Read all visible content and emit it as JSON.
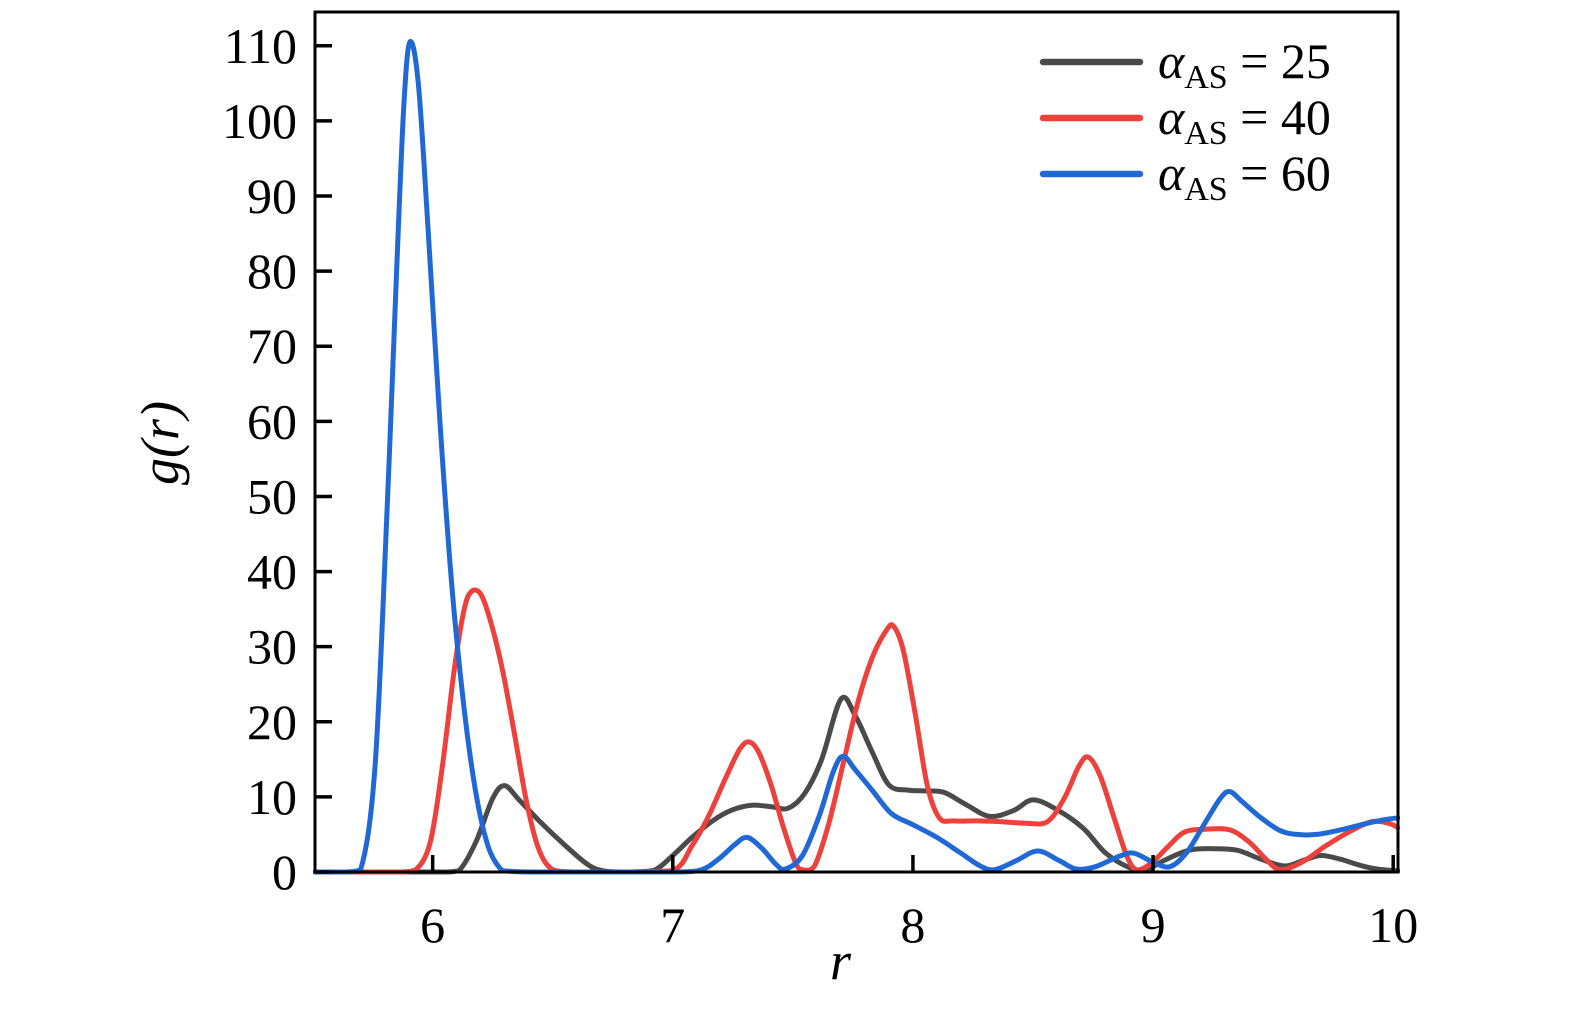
{
  "chart_data": {
    "type": "line",
    "title": "",
    "xlabel": "r",
    "ylabel": "g(r)",
    "xlim": [
      5.51,
      10.02
    ],
    "ylim": [
      0,
      114.5
    ],
    "xticks": [
      6,
      7,
      8,
      9,
      10
    ],
    "yticks": [
      0,
      10,
      20,
      30,
      40,
      50,
      60,
      70,
      80,
      90,
      100,
      110
    ],
    "grid": false,
    "legend_position": "upper right",
    "legend": [
      {
        "label": "α_AS = 25",
        "symbol": "α",
        "subscript": "AS",
        "operator": "=",
        "value": "25",
        "color": "#4a4a4a"
      },
      {
        "label": "α_AS = 40",
        "symbol": "α",
        "subscript": "AS",
        "operator": "=",
        "value": "40",
        "color": "#ee413c"
      },
      {
        "label": "α_AS = 60",
        "symbol": "α",
        "subscript": "AS",
        "operator": "=",
        "value": "60",
        "color": "#2068d5"
      }
    ],
    "series": [
      {
        "name": "alpha_AS_25",
        "color": "#4a4a4a",
        "points": [
          [
            5.51,
            0
          ],
          [
            5.7,
            0
          ],
          [
            5.9,
            0
          ],
          [
            6.05,
            0
          ],
          [
            6.11,
            0.2
          ],
          [
            6.18,
            4.0
          ],
          [
            6.25,
            9.8
          ],
          [
            6.3,
            11.5
          ],
          [
            6.36,
            9.6
          ],
          [
            6.45,
            6.6
          ],
          [
            6.55,
            3.6
          ],
          [
            6.65,
            0.9
          ],
          [
            6.72,
            0.1
          ],
          [
            6.82,
            0
          ],
          [
            6.92,
            0.2
          ],
          [
            7.0,
            2.2
          ],
          [
            7.08,
            4.6
          ],
          [
            7.17,
            6.9
          ],
          [
            7.25,
            8.3
          ],
          [
            7.33,
            8.9
          ],
          [
            7.41,
            8.7
          ],
          [
            7.48,
            8.5
          ],
          [
            7.55,
            10.5
          ],
          [
            7.62,
            15.0
          ],
          [
            7.7,
            23.0
          ],
          [
            7.76,
            20.8
          ],
          [
            7.83,
            16.0
          ],
          [
            7.9,
            11.6
          ],
          [
            7.98,
            10.9
          ],
          [
            8.06,
            10.8
          ],
          [
            8.13,
            10.6
          ],
          [
            8.22,
            9.0
          ],
          [
            8.32,
            7.4
          ],
          [
            8.42,
            8.2
          ],
          [
            8.5,
            9.6
          ],
          [
            8.6,
            8.3
          ],
          [
            8.71,
            5.8
          ],
          [
            8.8,
            2.6
          ],
          [
            8.9,
            0.6
          ],
          [
            8.97,
            0.3
          ],
          [
            9.05,
            1.6
          ],
          [
            9.15,
            2.9
          ],
          [
            9.25,
            3.1
          ],
          [
            9.35,
            2.9
          ],
          [
            9.45,
            1.7
          ],
          [
            9.55,
            0.8
          ],
          [
            9.63,
            1.6
          ],
          [
            9.7,
            2.2
          ],
          [
            9.78,
            1.7
          ],
          [
            9.86,
            0.9
          ],
          [
            9.93,
            0.4
          ],
          [
            10.02,
            0.15
          ]
        ]
      },
      {
        "name": "alpha_AS_40",
        "color": "#ee413c",
        "points": [
          [
            5.51,
            0
          ],
          [
            5.7,
            0
          ],
          [
            5.86,
            0
          ],
          [
            5.93,
            0.3
          ],
          [
            5.99,
            4.0
          ],
          [
            6.04,
            14.0
          ],
          [
            6.09,
            27.0
          ],
          [
            6.13,
            34.8
          ],
          [
            6.16,
            37.3
          ],
          [
            6.2,
            37.0
          ],
          [
            6.24,
            33.5
          ],
          [
            6.29,
            27.0
          ],
          [
            6.34,
            18.5
          ],
          [
            6.39,
            9.5
          ],
          [
            6.44,
            3.2
          ],
          [
            6.5,
            0.3
          ],
          [
            6.6,
            0
          ],
          [
            6.8,
            0
          ],
          [
            7.0,
            0.2
          ],
          [
            7.08,
            3.5
          ],
          [
            7.15,
            7.5
          ],
          [
            7.22,
            12.5
          ],
          [
            7.28,
            16.4
          ],
          [
            7.32,
            17.3
          ],
          [
            7.36,
            15.8
          ],
          [
            7.41,
            11.5
          ],
          [
            7.46,
            6.0
          ],
          [
            7.51,
            1.3
          ],
          [
            7.54,
            0.3
          ],
          [
            7.59,
            0.8
          ],
          [
            7.65,
            6.5
          ],
          [
            7.71,
            14.5
          ],
          [
            7.77,
            22.5
          ],
          [
            7.83,
            28.5
          ],
          [
            7.89,
            32.2
          ],
          [
            7.92,
            32.7
          ],
          [
            7.96,
            29.5
          ],
          [
            8.01,
            21.0
          ],
          [
            8.06,
            11.5
          ],
          [
            8.11,
            7.2
          ],
          [
            8.17,
            6.8
          ],
          [
            8.27,
            6.8
          ],
          [
            8.37,
            6.7
          ],
          [
            8.47,
            6.5
          ],
          [
            8.56,
            6.7
          ],
          [
            8.63,
            9.8
          ],
          [
            8.69,
            14.0
          ],
          [
            8.73,
            15.3
          ],
          [
            8.78,
            12.8
          ],
          [
            8.84,
            7.0
          ],
          [
            8.89,
            2.2
          ],
          [
            8.93,
            0.3
          ],
          [
            8.99,
            1.1
          ],
          [
            9.06,
            3.3
          ],
          [
            9.13,
            5.3
          ],
          [
            9.22,
            5.7
          ],
          [
            9.32,
            5.6
          ],
          [
            9.4,
            4.0
          ],
          [
            9.47,
            1.7
          ],
          [
            9.53,
            0.3
          ],
          [
            9.62,
            1.3
          ],
          [
            9.72,
            3.5
          ],
          [
            9.82,
            5.4
          ],
          [
            9.91,
            6.7
          ],
          [
            9.98,
            6.5
          ],
          [
            10.02,
            5.9
          ]
        ]
      },
      {
        "name": "alpha_AS_60",
        "color": "#2068d5",
        "points": [
          [
            5.51,
            0
          ],
          [
            5.63,
            0
          ],
          [
            5.7,
            0.3
          ],
          [
            5.76,
            14
          ],
          [
            5.81,
            48
          ],
          [
            5.85,
            80
          ],
          [
            5.88,
            102
          ],
          [
            5.905,
            110.5
          ],
          [
            5.94,
            105
          ],
          [
            5.98,
            86
          ],
          [
            6.03,
            60
          ],
          [
            6.08,
            38
          ],
          [
            6.13,
            22
          ],
          [
            6.18,
            10.5
          ],
          [
            6.23,
            3.5
          ],
          [
            6.28,
            0.5
          ],
          [
            6.32,
            0.1
          ],
          [
            6.45,
            0
          ],
          [
            6.65,
            0
          ],
          [
            6.85,
            0
          ],
          [
            7.02,
            0
          ],
          [
            7.12,
            0.3
          ],
          [
            7.19,
            1.7
          ],
          [
            7.26,
            3.7
          ],
          [
            7.31,
            4.6
          ],
          [
            7.37,
            3.2
          ],
          [
            7.43,
            1.0
          ],
          [
            7.47,
            0.4
          ],
          [
            7.54,
            2.2
          ],
          [
            7.61,
            7.5
          ],
          [
            7.67,
            13.5
          ],
          [
            7.71,
            15.4
          ],
          [
            7.76,
            13.6
          ],
          [
            7.83,
            10.9
          ],
          [
            7.91,
            7.8
          ],
          [
            8.0,
            6.3
          ],
          [
            8.1,
            4.6
          ],
          [
            8.2,
            2.5
          ],
          [
            8.28,
            0.8
          ],
          [
            8.34,
            0.3
          ],
          [
            8.43,
            1.5
          ],
          [
            8.52,
            2.8
          ],
          [
            8.61,
            1.5
          ],
          [
            8.68,
            0.4
          ],
          [
            8.76,
            0.7
          ],
          [
            8.86,
            2.1
          ],
          [
            8.92,
            2.5
          ],
          [
            9.0,
            1.3
          ],
          [
            9.07,
            0.7
          ],
          [
            9.14,
            2.6
          ],
          [
            9.21,
            6.2
          ],
          [
            9.28,
            9.8
          ],
          [
            9.32,
            10.7
          ],
          [
            9.37,
            9.4
          ],
          [
            9.45,
            7.2
          ],
          [
            9.53,
            5.5
          ],
          [
            9.6,
            5.0
          ],
          [
            9.68,
            5.0
          ],
          [
            9.78,
            5.6
          ],
          [
            9.88,
            6.4
          ],
          [
            9.97,
            7.0
          ],
          [
            10.02,
            7.2
          ]
        ]
      }
    ],
    "axis_color": "#000000",
    "background_color": "#ffffff"
  }
}
